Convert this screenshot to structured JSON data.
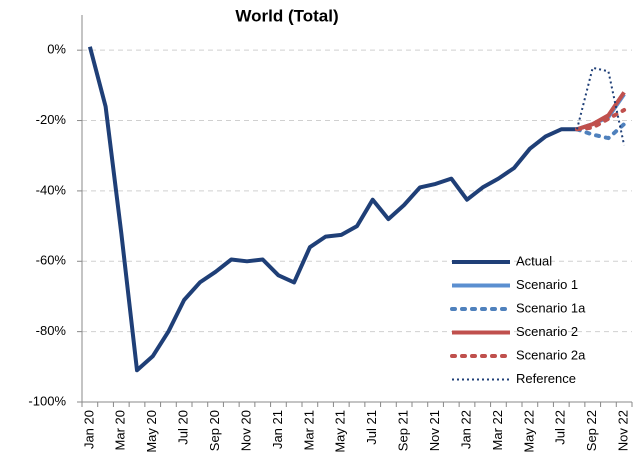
{
  "chart_data": {
    "type": "line",
    "title": "World (Total)",
    "categories": [
      "Jan 20",
      null,
      "Mar 20",
      null,
      "May 20",
      null,
      "Jul 20",
      null,
      "Sep 20",
      null,
      "Nov 20",
      null,
      "Jan 21",
      null,
      "Mar 21",
      null,
      "May 21",
      null,
      "Jul 21",
      null,
      "Sep 21",
      null,
      "Nov 21",
      null,
      "Jan 22",
      null,
      "Mar 22",
      null,
      "May 22",
      null,
      "Jul 22",
      null,
      "Sep 22",
      null,
      "Nov 22"
    ],
    "ylim": [
      -100,
      10
    ],
    "yticks": [
      {
        "value": -100,
        "label": "-100%"
      },
      {
        "value": -80,
        "label": "-80%"
      },
      {
        "value": -60,
        "label": "-60%"
      },
      {
        "value": -40,
        "label": "-40%"
      },
      {
        "value": -20,
        "label": "-20%"
      },
      {
        "value": 0,
        "label": "0%"
      }
    ],
    "grid": true,
    "legend": "lower right",
    "series": [
      {
        "name": "Actual",
        "color": "#1f3f77",
        "style": "solid",
        "width": 4,
        "values": [
          1,
          -16,
          -52,
          -91,
          -87,
          -80,
          -71,
          -66,
          -63,
          -59.5,
          -60,
          -59.5,
          -64,
          -66,
          -56,
          -53,
          -52.5,
          -50,
          -42.5,
          -48,
          -44,
          -39,
          -38,
          -36.5,
          -42.5,
          -39,
          -36.5,
          -33.5,
          -28,
          -24.5,
          -22.5,
          -22.5,
          null,
          null,
          null
        ]
      },
      {
        "name": "Scenario 1",
        "color": "#5b8fd0",
        "style": "solid",
        "width": 4,
        "values": [
          null,
          null,
          null,
          null,
          null,
          null,
          null,
          null,
          null,
          null,
          null,
          null,
          null,
          null,
          null,
          null,
          null,
          null,
          null,
          null,
          null,
          null,
          null,
          null,
          null,
          null,
          null,
          null,
          null,
          null,
          null,
          -22.5,
          -21,
          -19,
          -12.5
        ]
      },
      {
        "name": "Scenario 1a",
        "color": "#4f81bd",
        "style": "dotted",
        "width": 4,
        "values": [
          null,
          null,
          null,
          null,
          null,
          null,
          null,
          null,
          null,
          null,
          null,
          null,
          null,
          null,
          null,
          null,
          null,
          null,
          null,
          null,
          null,
          null,
          null,
          null,
          null,
          null,
          null,
          null,
          null,
          null,
          null,
          -22.5,
          -24,
          -25,
          -21
        ]
      },
      {
        "name": "Scenario 2",
        "color": "#c0504d",
        "style": "solid",
        "width": 4,
        "values": [
          null,
          null,
          null,
          null,
          null,
          null,
          null,
          null,
          null,
          null,
          null,
          null,
          null,
          null,
          null,
          null,
          null,
          null,
          null,
          null,
          null,
          null,
          null,
          null,
          null,
          null,
          null,
          null,
          null,
          null,
          null,
          -22.5,
          -21,
          -18.5,
          -12
        ]
      },
      {
        "name": "Scenario 2a",
        "color": "#c0504d",
        "style": "dotted",
        "width": 4,
        "values": [
          null,
          null,
          null,
          null,
          null,
          null,
          null,
          null,
          null,
          null,
          null,
          null,
          null,
          null,
          null,
          null,
          null,
          null,
          null,
          null,
          null,
          null,
          null,
          null,
          null,
          null,
          null,
          null,
          null,
          null,
          null,
          -22.5,
          -22,
          -19.5,
          -17
        ]
      },
      {
        "name": "Reference",
        "color": "#1f3f77",
        "style": "dotted",
        "width": 2,
        "values": [
          null,
          null,
          null,
          null,
          null,
          null,
          null,
          null,
          null,
          null,
          null,
          null,
          null,
          null,
          null,
          null,
          null,
          null,
          null,
          null,
          null,
          null,
          null,
          null,
          null,
          null,
          null,
          null,
          null,
          null,
          null,
          -22.5,
          -5,
          -6,
          -27
        ]
      }
    ]
  }
}
